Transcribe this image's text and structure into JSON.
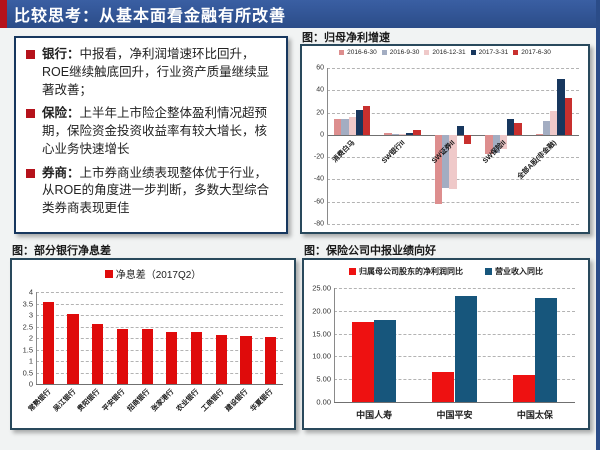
{
  "title_bar": {
    "text": "比较思考：从基本面看金融有所改善",
    "bg_color": "#2b4c88",
    "accent_color": "#b5121b"
  },
  "bullets": [
    {
      "label": "银行：",
      "text": "中报看，净利润增速环比回升，ROE继续触底回升，行业资产质量继续显著改善；"
    },
    {
      "label": "保险：",
      "text": "上半年上市险企整体盈利情况超预期，保险资金投资收益率有较大增长，核心业务快速增长"
    },
    {
      "label": "券商：",
      "text": "上市券商业绩表现整体优于行业，从ROE的角度进一步判断，多数大型综合类券商表现更佳"
    }
  ],
  "chart_data": [
    {
      "type": "bar",
      "title": "图：归母净利增速",
      "categories": [
        "消费白马",
        "SW银行II",
        "SW证券II",
        "SW保险II",
        "全部A股(非金融)"
      ],
      "series": [
        {
          "name": "2016-6-30",
          "color": "#dd8e8e",
          "values": [
            14,
            2,
            -62,
            -17,
            1
          ]
        },
        {
          "name": "2016-9-30",
          "color": "#a3adc2",
          "values": [
            14,
            1,
            -48,
            -16,
            12
          ]
        },
        {
          "name": "2016-12-31",
          "color": "#efc9c9",
          "values": [
            16,
            1,
            -49,
            -13,
            21
          ]
        },
        {
          "name": "2017-3-31",
          "color": "#17375e",
          "values": [
            22,
            2,
            8,
            14,
            50
          ]
        },
        {
          "name": "2017-6-30",
          "color": "#c8302e",
          "values": [
            26,
            4,
            -8,
            11,
            33
          ]
        }
      ],
      "ylim": [
        -80,
        60
      ],
      "ystep": 20,
      "grid": true,
      "legend_position": "top",
      "rotated_labels": true,
      "labels_at_zero": true,
      "cluster_frac": 0.72
    },
    {
      "type": "bar",
      "title": "图：部分银行净息差",
      "legend": "净息差（2017Q2）",
      "color": "#df0b0b",
      "categories": [
        "常熟银行",
        "吴江银行",
        "贵阳银行",
        "平安银行",
        "招商银行",
        "张家港行",
        "农业银行",
        "工商银行",
        "建设银行",
        "华夏银行"
      ],
      "values": [
        3.55,
        3.05,
        2.6,
        2.4,
        2.4,
        2.25,
        2.25,
        2.15,
        2.1,
        2.05
      ],
      "ylim": [
        0,
        4
      ],
      "ystep": 0.5,
      "grid": true,
      "legend_position": "top",
      "rotated_labels": true,
      "cluster_frac": 0.45
    },
    {
      "type": "bar",
      "title": "图：保险公司中报业绩向好",
      "categories": [
        "中国人寿",
        "中国平安",
        "中国太保"
      ],
      "series": [
        {
          "name": "归属母公司股东的净利润同比",
          "color": "#ee1111",
          "values": [
            17.6,
            6.5,
            6.0
          ]
        },
        {
          "name": "营业收入同比",
          "color": "#17567c",
          "values": [
            17.9,
            23.2,
            22.8
          ]
        }
      ],
      "ylim": [
        0,
        25
      ],
      "ystep": 5,
      "ydec": 2,
      "grid": true,
      "legend_position": "top",
      "rotated_labels": false,
      "cluster_frac": 0.55
    }
  ]
}
